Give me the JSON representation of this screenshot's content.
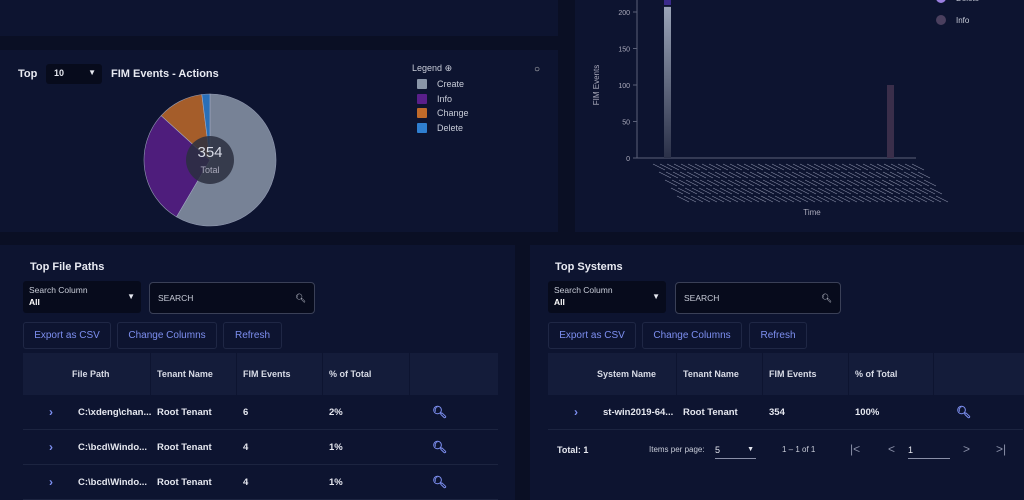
{
  "pie_panel": {
    "top_label": "Top",
    "top_value": "10",
    "title": "FIM Events - Actions",
    "legend_title": "Legend",
    "total": "354",
    "total_label": "Total",
    "chart_data": {
      "type": "pie",
      "title": "FIM Events - Actions",
      "total": 354,
      "slices": [
        {
          "label": "Create",
          "value": 207,
          "color": "#8a96a8"
        },
        {
          "label": "Info",
          "value": 100,
          "color": "#5a1f8a"
        },
        {
          "label": "Change",
          "value": 40,
          "color": "#c06a2a"
        },
        {
          "label": "Delete",
          "value": 7,
          "color": "#2f7fd0"
        }
      ],
      "legend_placement": "top-right"
    }
  },
  "bar_panel": {
    "chart_data": {
      "type": "bar",
      "xlabel": "Time",
      "ylabel": "FIM Events",
      "ylim": [
        0,
        200
      ],
      "yticks": [
        "0",
        "50",
        "100",
        "150",
        "200"
      ],
      "series": [
        {
          "name": "Delete",
          "color": "#9b7fe0"
        },
        {
          "name": "Info",
          "color": "#4a3f5e"
        }
      ],
      "bars": [
        {
          "value": 207,
          "color": "#8a96a8"
        },
        {
          "value": 100,
          "color": "#3a2e4a"
        }
      ],
      "legend_placement": "top-right"
    }
  },
  "file_paths": {
    "title": "Top File Paths",
    "search_column_label": "Search Column",
    "search_column_value": "All",
    "search_placeholder": "SEARCH",
    "buttons": [
      "Export as CSV",
      "Change Columns",
      "Refresh"
    ],
    "columns": [
      "File Path",
      "Tenant Name",
      "FIM Events",
      "% of Total"
    ],
    "rows": [
      [
        "C:\\xdeng\\chan...",
        "Root Tenant",
        "6",
        "2%"
      ],
      [
        "C:\\bcd\\Windo...",
        "Root Tenant",
        "4",
        "1%"
      ],
      [
        "C:\\bcd\\Windo...",
        "Root Tenant",
        "4",
        "1%"
      ]
    ]
  },
  "systems": {
    "title": "Top Systems",
    "search_column_label": "Search Column",
    "search_column_value": "All",
    "search_placeholder": "SEARCH",
    "buttons": [
      "Export as CSV",
      "Change Columns",
      "Refresh"
    ],
    "columns": [
      "System Name",
      "Tenant Name",
      "FIM Events",
      "% of Total"
    ],
    "rows": [
      [
        "st-win2019-64...",
        "Root Tenant",
        "354",
        "100%"
      ]
    ],
    "total": "Total: 1",
    "items_per_page_label": "Items per page:",
    "items_per_page": "5",
    "range": "1 – 1 of 1",
    "page": "1"
  }
}
